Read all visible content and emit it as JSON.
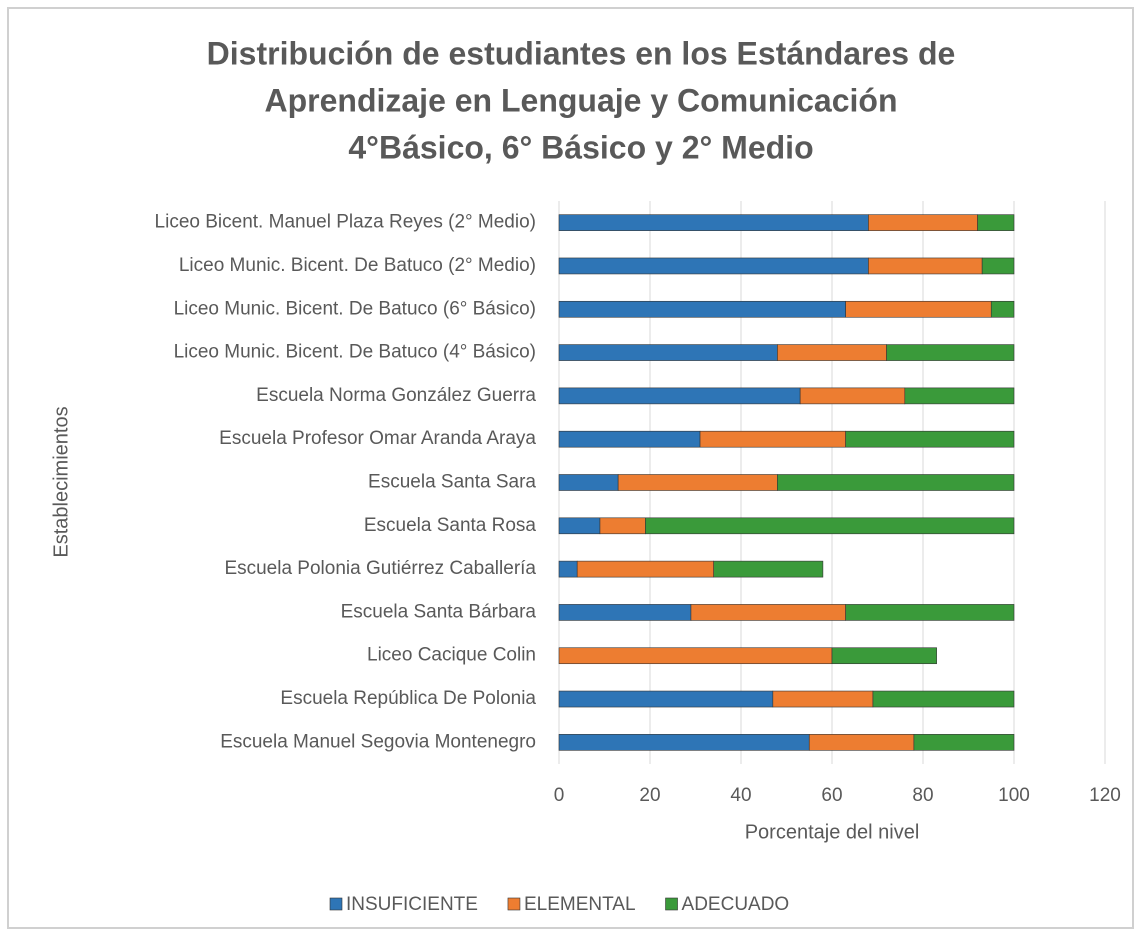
{
  "chart_data": {
    "type": "stacked_barh",
    "title": [
      "Distribución de estudiantes en los Estándares de",
      "Aprendizaje en Lenguaje y Comunicación",
      "4°Básico, 6° Básico y 2° Medio"
    ],
    "y_label": "Establecimientos",
    "x_label": "Porcentaje del nivel",
    "categories": [
      "Liceo Bicent. Manuel Plaza Reyes (2° Medio)",
      "Liceo Munic. Bicent. De Batuco (2° Medio)",
      "Liceo Munic. Bicent. De Batuco (6° Básico)",
      "Liceo Munic. Bicent. De Batuco (4° Básico)",
      "Escuela Norma González Guerra",
      "Escuela Profesor Omar Aranda Araya",
      "Escuela Santa Sara",
      "Escuela Santa Rosa",
      "Escuela Polonia Gutiérrez Caballería",
      "Escuela Santa Bárbara",
      "Liceo Cacique Colin",
      "Escuela República De Polonia",
      "Escuela Manuel Segovia Montenegro"
    ],
    "series": [
      {
        "name": "INSUFICIENTE",
        "color": "#2e75b6",
        "values": [
          68,
          68,
          63,
          48,
          53,
          31,
          13,
          9,
          4,
          29,
          0,
          47,
          55
        ]
      },
      {
        "name": "ELEMENTAL",
        "color": "#ed7d31",
        "values": [
          24,
          25,
          32,
          24,
          23,
          32,
          35,
          10,
          30,
          34,
          60,
          22,
          23
        ]
      },
      {
        "name": "ADECUADO",
        "color": "#3a9a3a",
        "values": [
          8,
          7,
          5,
          28,
          24,
          37,
          52,
          81,
          24,
          37,
          23,
          31,
          22
        ]
      }
    ],
    "xlim": [
      0,
      120
    ],
    "xticks": [
      0,
      20,
      40,
      60,
      80,
      100,
      120
    ],
    "grid": true,
    "legend": "bottom"
  }
}
